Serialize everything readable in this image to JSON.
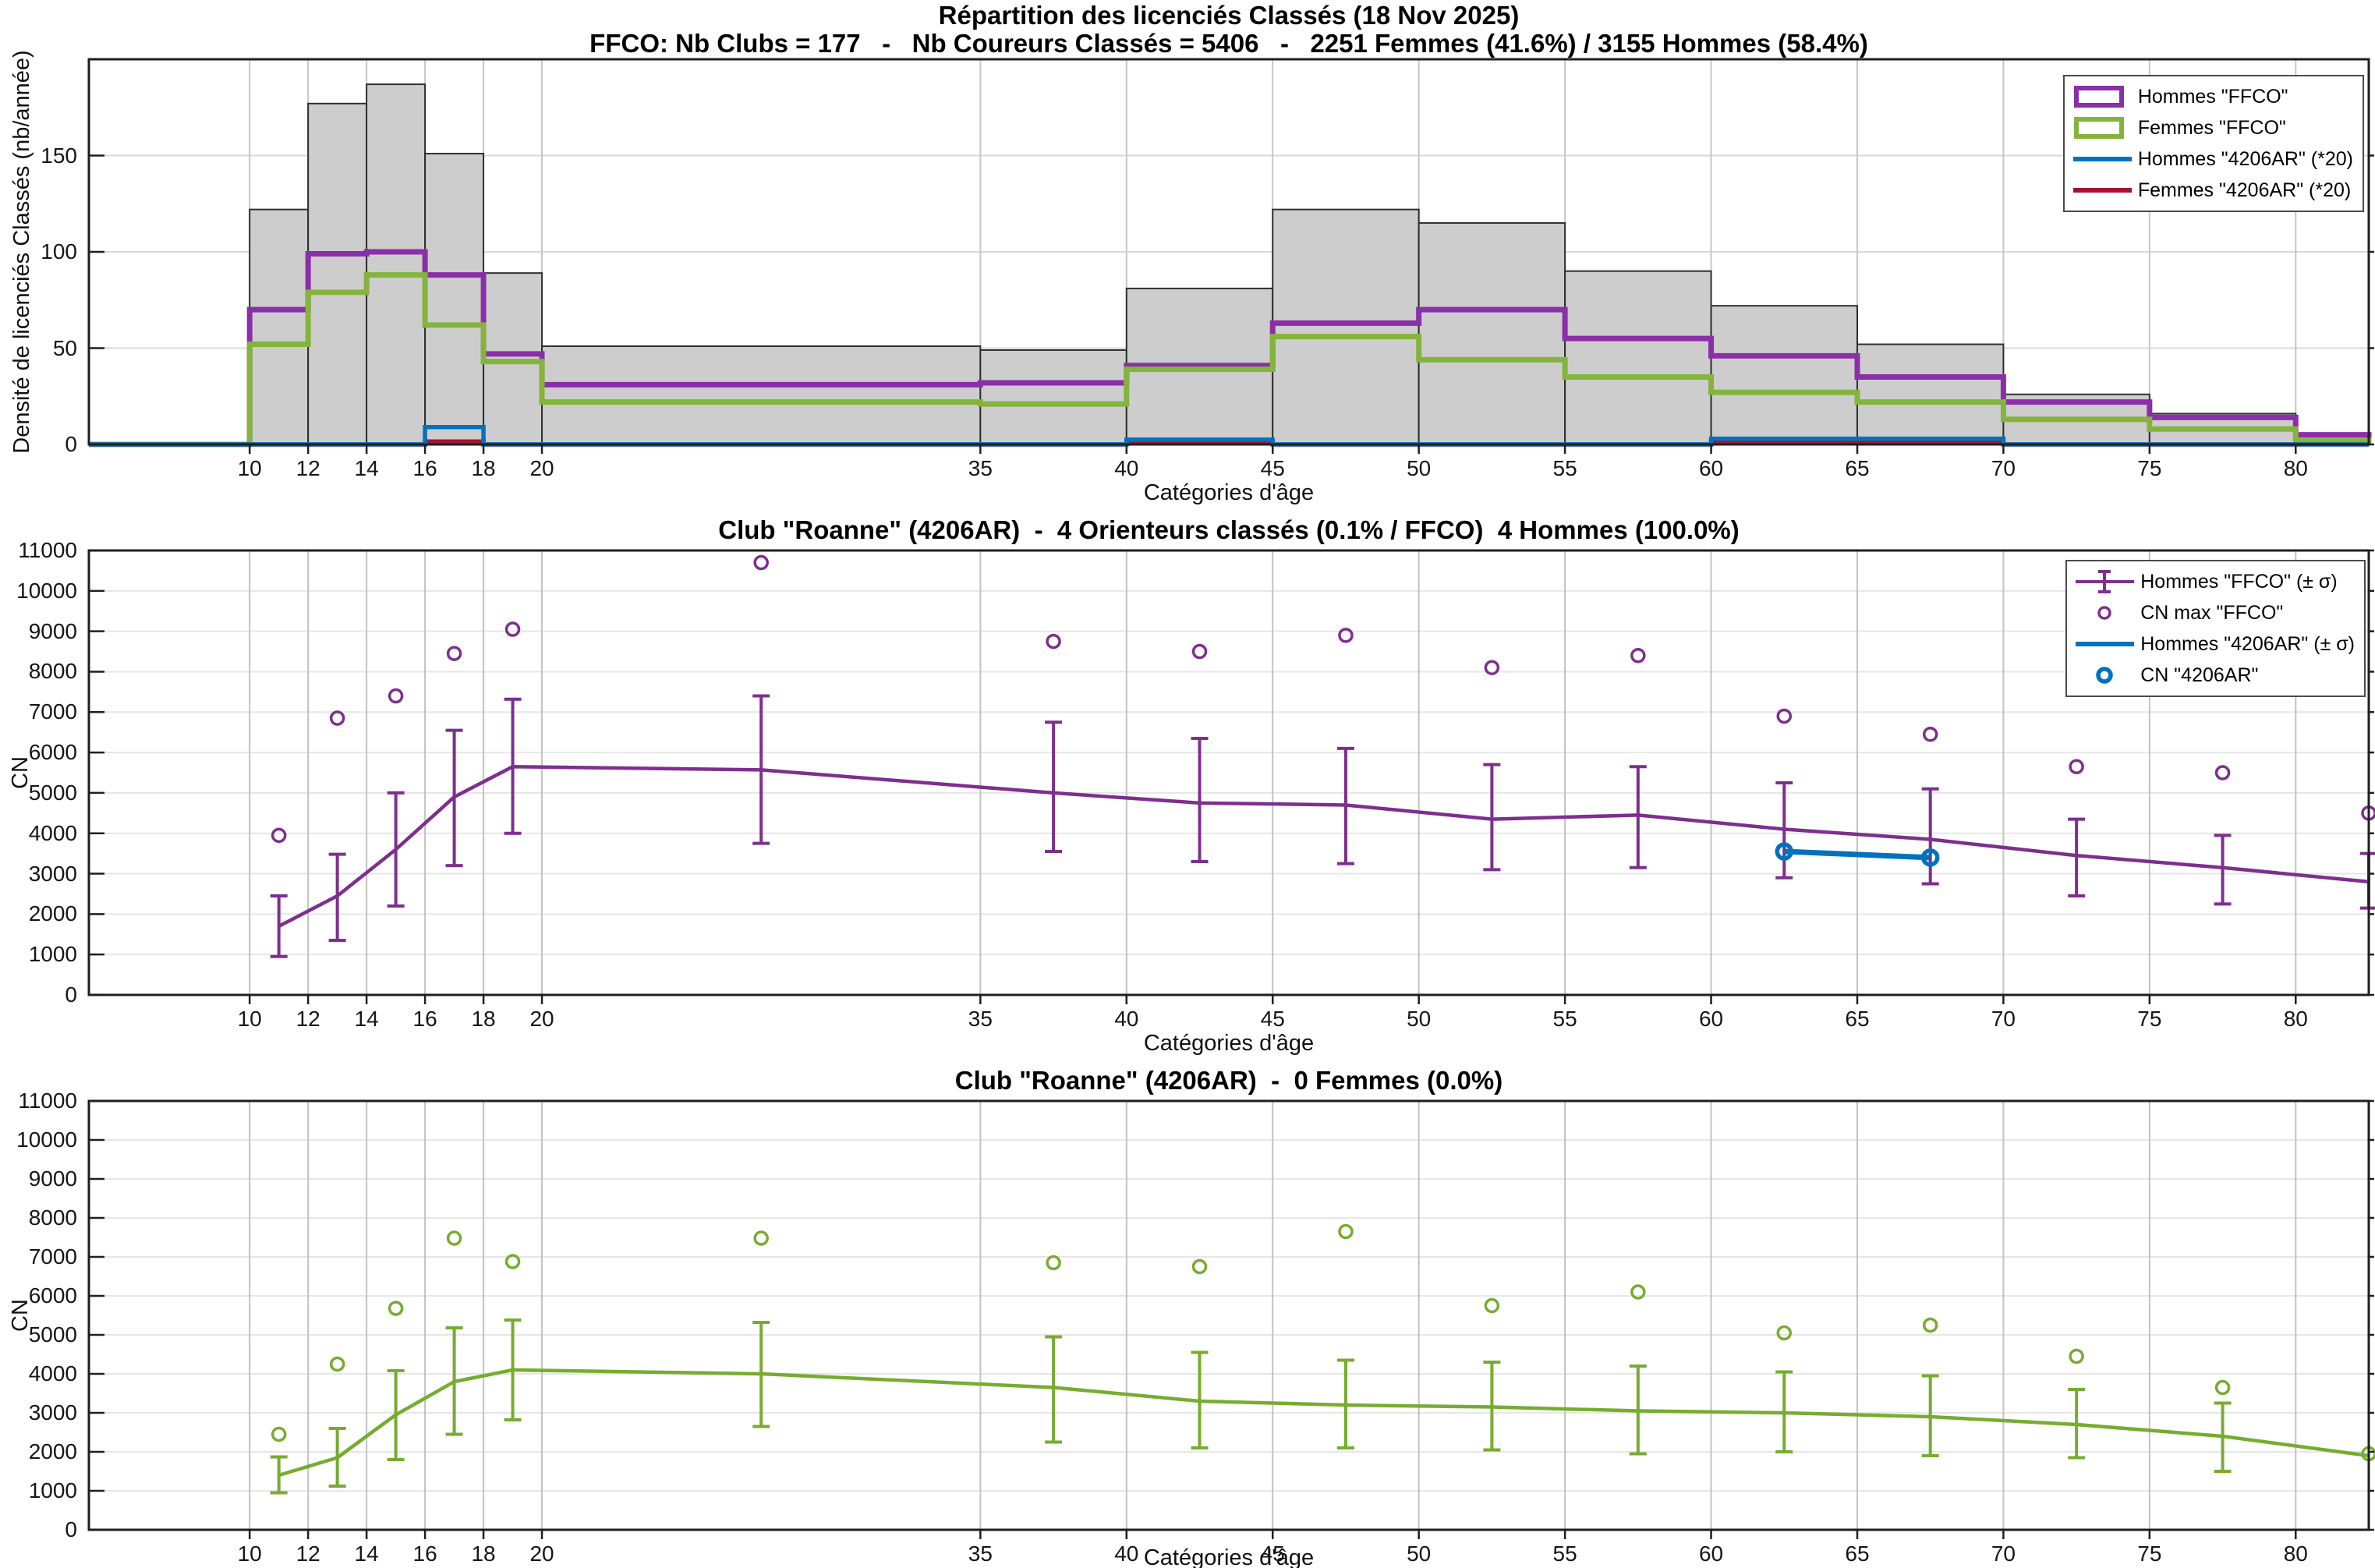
{
  "figure": {
    "top": {
      "title_line1": "Répartition des licenciés Classés (18 Nov 2025)",
      "title_line2": "FFCO: Nb Clubs = 177   -   Nb Coureurs Classés = 5406   -   2251 Femmes (41.6%) / 3155 Hommes (58.4%)",
      "ylabel": "Densité de licenciés Classés (nb/année)",
      "xlabel": "Catégories d'âge"
    },
    "middle": {
      "title": "Club \"Roanne\" (4206AR)  -  4 Orienteurs classés (0.1% / FFCO)  4 Hommes (100.0%)",
      "ylabel": "CN",
      "xlabel": "Catégories d'âge"
    },
    "bottom": {
      "title": "Club \"Roanne\" (4206AR)  -  0 Femmes (0.0%)",
      "ylabel": "CN",
      "xlabel": "Catégories d'âge"
    }
  },
  "chart_data": [
    {
      "id": "top",
      "type": "bar",
      "title": "Répartition des licenciés Classés (18 Nov 2025)",
      "xlabel": "Catégories d'âge",
      "ylabel": "Densité de licenciés Classés (nb/année)",
      "x_domain": [
        4.5,
        82.5
      ],
      "y_domain": [
        0,
        200
      ],
      "x_ticks": [
        10,
        12,
        14,
        16,
        18,
        20,
        35,
        40,
        45,
        50,
        55,
        60,
        65,
        70,
        75,
        80
      ],
      "y_ticks": [
        0,
        50,
        100,
        150
      ],
      "grid_color_x": "#c6c6c6",
      "grid_color_y": "#d8d8d8",
      "bin_edges": [
        10,
        12,
        14,
        16,
        18,
        20,
        35,
        40,
        45,
        50,
        55,
        60,
        65,
        70,
        75,
        80,
        85
      ],
      "bars": {
        "name": "Tous licenciés classés",
        "color": "#cdcdcd",
        "edge_color": "#2f2f2f",
        "values": [
          122,
          177,
          187,
          151,
          89,
          51,
          49,
          81,
          122,
          115,
          90,
          72,
          52,
          26,
          16,
          5
        ]
      },
      "steps": [
        {
          "name": "Hommes \"FFCO\"",
          "color": "#8a2fa8",
          "line_width": 7,
          "values": [
            70,
            99,
            100,
            88,
            47,
            31,
            32,
            41,
            63,
            70,
            55,
            46,
            35,
            22,
            14,
            5
          ]
        },
        {
          "name": "Femmes \"FFCO\"",
          "color": "#84b43c",
          "line_width": 7,
          "values": [
            52,
            79,
            88,
            62,
            43,
            22,
            21,
            39,
            56,
            44,
            35,
            27,
            22,
            13,
            8,
            2
          ]
        },
        {
          "name": "Femmes \"4206AR\" (*20)",
          "color": "#a2142f",
          "line_width": 5.5,
          "values": [
            0,
            0,
            0,
            1.5,
            0,
            0,
            0,
            1.2,
            0,
            0,
            0,
            1.5,
            1.5,
            0,
            0,
            0
          ]
        },
        {
          "name": "Hommes \"4206AR\" (*20)",
          "color": "#0072bd",
          "line_width": 5.5,
          "values": [
            0,
            0,
            0,
            9,
            0,
            0,
            0,
            2.5,
            0,
            0,
            0,
            3,
            3,
            0,
            0,
            0
          ]
        }
      ],
      "legend": [
        {
          "label": "Hommes \"FFCO\"",
          "type": "rect",
          "color": "#8a2fa8"
        },
        {
          "label": "Femmes \"FFCO\"",
          "type": "rect",
          "color": "#84b43c"
        },
        {
          "label": "Hommes \"4206AR\" (*20)",
          "type": "line",
          "color": "#0072bd"
        },
        {
          "label": "Femmes \"4206AR\" (*20)",
          "type": "line",
          "color": "#a2142f"
        }
      ]
    },
    {
      "id": "middle",
      "type": "line",
      "title": "Club \"Roanne\" (4206AR)  -  4 Orienteurs classés (0.1% / FFCO)  4 Hommes (100.0%)",
      "xlabel": "Catégories d'âge",
      "ylabel": "CN",
      "x_domain": [
        4.5,
        82.5
      ],
      "y_domain": [
        0,
        11000
      ],
      "x_ticks": [
        10,
        12,
        14,
        16,
        18,
        20,
        35,
        40,
        45,
        50,
        55,
        60,
        65,
        70,
        75,
        80
      ],
      "y_ticks": [
        0,
        1000,
        2000,
        3000,
        4000,
        5000,
        6000,
        7000,
        8000,
        9000,
        10000,
        11000
      ],
      "grid_color_x": "#c2c2c2",
      "grid_color_y": "#e6e6e6",
      "x": [
        11,
        13,
        15,
        17,
        19,
        27.5,
        37.5,
        42.5,
        47.5,
        52.5,
        57.5,
        62.5,
        67.5,
        72.5,
        77.5,
        82.5
      ],
      "series": [
        {
          "name": "Hommes \"FFCO\" (± σ)",
          "type": "errorline",
          "color": "#7e2f8e",
          "mean": [
            1700,
            2450,
            3600,
            4900,
            5650,
            5570,
            5000,
            4750,
            4700,
            4350,
            4450,
            4100,
            3850,
            3450,
            3150,
            2800
          ],
          "err_lo": [
            950,
            1350,
            2200,
            3200,
            4000,
            3750,
            3550,
            3300,
            3250,
            3100,
            3150,
            2900,
            2750,
            2450,
            2250,
            2150
          ],
          "err_hi": [
            2450,
            3480,
            5000,
            6550,
            7320,
            7400,
            6750,
            6350,
            6100,
            5700,
            5650,
            5250,
            5100,
            4350,
            3950,
            3500
          ]
        },
        {
          "name": "CN max \"FFCO\"",
          "type": "scatter",
          "color": "#7e2f8e",
          "y": [
            3950,
            6850,
            7400,
            8450,
            9050,
            10700,
            8750,
            8500,
            8900,
            8100,
            8400,
            6900,
            6450,
            5650,
            5500,
            4500
          ]
        },
        {
          "name": "Hommes \"4206AR\" (± σ)",
          "type": "line",
          "color": "#0072bd",
          "x": [
            62.5,
            67.5
          ],
          "y": [
            3550,
            3400
          ]
        },
        {
          "name": "CN \"4206AR\"",
          "type": "scatter-bold",
          "color": "#0072bd",
          "x": [
            62.5,
            67.5
          ],
          "y": [
            3550,
            3400
          ]
        }
      ],
      "legend": [
        {
          "label": "Hommes \"FFCO\" (± σ)",
          "type": "errorbar",
          "color": "#7e2f8e"
        },
        {
          "label": "CN max \"FFCO\"",
          "type": "circle",
          "color": "#7e2f8e"
        },
        {
          "label": "Hommes \"4206AR\" (± σ)",
          "type": "line",
          "color": "#0072bd"
        },
        {
          "label": "CN \"4206AR\"",
          "type": "circle-bold",
          "color": "#0072bd"
        }
      ]
    },
    {
      "id": "bottom",
      "type": "line",
      "title": "Club \"Roanne\" (4206AR)  -  0 Femmes (0.0%)",
      "xlabel": "Catégories d'âge",
      "ylabel": "CN",
      "x_domain": [
        4.5,
        82.5
      ],
      "y_domain": [
        0,
        11000
      ],
      "x_ticks": [
        10,
        12,
        14,
        16,
        18,
        20,
        35,
        40,
        45,
        50,
        55,
        60,
        65,
        70,
        75,
        80
      ],
      "y_ticks": [
        0,
        1000,
        2000,
        3000,
        4000,
        5000,
        6000,
        7000,
        8000,
        9000,
        10000,
        11000
      ],
      "grid_color_x": "#c2c2c2",
      "grid_color_y": "#e6e6e6",
      "x": [
        11,
        13,
        15,
        17,
        19,
        27.5,
        37.5,
        42.5,
        47.5,
        52.5,
        57.5,
        62.5,
        67.5,
        72.5,
        77.5,
        82.5
      ],
      "series": [
        {
          "name": "Femmes \"FFCO\" (± σ)",
          "type": "errorline",
          "color": "#77ac30",
          "mean": [
            1400,
            1850,
            2950,
            3800,
            4100,
            4000,
            3650,
            3300,
            3200,
            3150,
            3050,
            3000,
            2900,
            2700,
            2400,
            1900
          ],
          "err_lo": [
            950,
            1120,
            1800,
            2450,
            2820,
            2650,
            2250,
            2100,
            2100,
            2050,
            1950,
            2000,
            1900,
            1850,
            1500,
            null
          ],
          "err_hi": [
            1870,
            2600,
            4080,
            5180,
            5380,
            5320,
            4950,
            4550,
            4350,
            4300,
            4200,
            4050,
            3950,
            3600,
            3250,
            null
          ]
        },
        {
          "name": "CN max \"FFCO\"",
          "type": "scatter",
          "color": "#77ac30",
          "y": [
            2450,
            4250,
            5680,
            7480,
            6880,
            7480,
            6850,
            6750,
            7650,
            5750,
            6100,
            5050,
            5250,
            4450,
            3650,
            1950
          ]
        }
      ],
      "legend": null
    }
  ]
}
